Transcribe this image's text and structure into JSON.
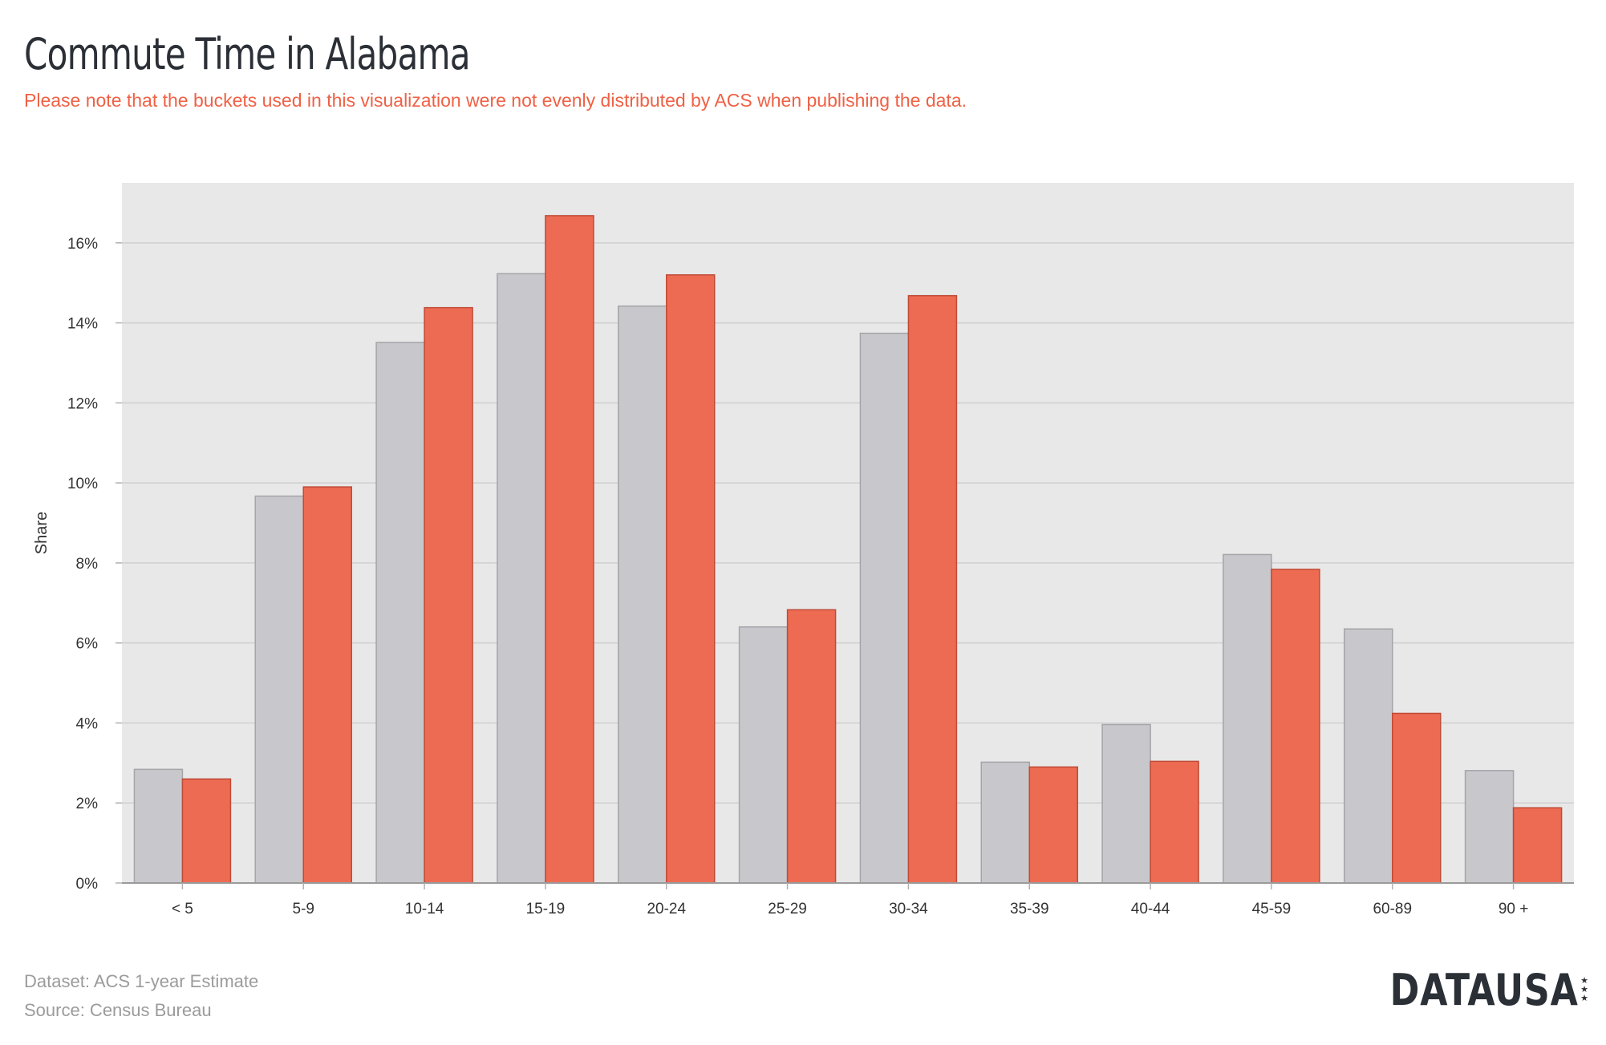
{
  "header": {
    "title": "Commute Time in Alabama",
    "subtitle": "Please note that the buckets used in this visualization were not evenly distributed by ACS when publishing the data."
  },
  "footer": {
    "dataset": "Dataset: ACS 1-year Estimate",
    "source": "Source: Census Bureau"
  },
  "logo": {
    "text": "DATAUSA",
    "icon": "star-icon"
  },
  "colors": {
    "series_1": "#c8c8cc",
    "series_1_stroke": "#a4a4a9",
    "series_2": "#ed6b53",
    "series_2_stroke": "#c04a36",
    "plot_background": "#e8e8e8",
    "grid": "#cfcfcf",
    "subtitle": "#ef6145"
  },
  "chart_data": {
    "type": "bar",
    "title": "Commute Time in Alabama",
    "subtitle": "Please note that the buckets used in this visualization were not evenly distributed by ACS when publishing the data.",
    "xlabel": "",
    "ylabel": "Share",
    "categories": [
      "< 5",
      "5-9",
      "10-14",
      "15-19",
      "20-24",
      "25-29",
      "30-34",
      "35-39",
      "40-44",
      "45-59",
      "60-89",
      "90 +"
    ],
    "series": [
      {
        "values": [
          2.84,
          9.67,
          13.51,
          15.23,
          14.42,
          6.4,
          13.74,
          3.02,
          3.96,
          8.21,
          6.35,
          2.81
        ]
      },
      {
        "values": [
          2.6,
          9.9,
          14.38,
          16.68,
          15.2,
          6.83,
          14.68,
          2.9,
          3.04,
          7.84,
          4.24,
          1.88
        ]
      }
    ],
    "yticks": [
      0,
      2,
      4,
      6,
      8,
      10,
      12,
      14,
      16
    ],
    "ytick_labels": [
      "0%",
      "2%",
      "4%",
      "6%",
      "8%",
      "10%",
      "12%",
      "14%",
      "16%"
    ],
    "ylim": [
      0,
      17.5
    ],
    "grid": true,
    "legend": "none"
  }
}
